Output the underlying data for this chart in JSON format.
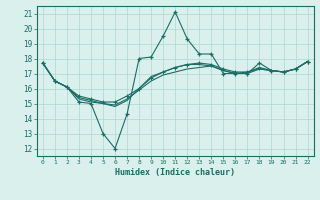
{
  "xlabel": "Humidex (Indice chaleur)",
  "background_color": "#daf0ec",
  "grid_color": "#aed8d0",
  "line_color": "#1a6e64",
  "xlim": [
    -0.5,
    22.5
  ],
  "ylim": [
    11.5,
    21.5
  ],
  "xticks": [
    0,
    1,
    2,
    3,
    4,
    5,
    6,
    7,
    8,
    9,
    10,
    11,
    12,
    13,
    14,
    15,
    16,
    17,
    18,
    19,
    20,
    21,
    22
  ],
  "yticks": [
    12,
    13,
    14,
    15,
    16,
    17,
    18,
    19,
    20,
    21
  ],
  "line1_x": [
    0,
    1,
    2,
    3,
    4,
    5,
    6,
    7,
    8,
    9,
    10,
    11,
    12,
    13,
    14,
    15,
    16,
    17,
    18,
    19,
    20,
    21,
    22
  ],
  "line1_y": [
    17.7,
    16.5,
    16.1,
    15.1,
    15.0,
    13.0,
    12.0,
    14.3,
    18.0,
    18.1,
    19.5,
    21.1,
    19.3,
    18.3,
    18.3,
    17.0,
    17.0,
    17.0,
    17.7,
    17.2,
    17.1,
    17.3,
    17.8
  ],
  "line2_x": [
    0,
    1,
    2,
    3,
    4,
    5,
    6,
    7,
    8,
    9,
    10,
    11,
    12,
    13,
    14,
    15,
    16,
    17,
    18,
    19,
    20,
    21,
    22
  ],
  "line2_y": [
    17.7,
    16.5,
    16.1,
    15.5,
    15.3,
    15.1,
    15.1,
    15.5,
    16.0,
    16.7,
    17.1,
    17.4,
    17.6,
    17.7,
    17.6,
    17.3,
    17.1,
    17.1,
    17.4,
    17.2,
    17.1,
    17.3,
    17.8
  ],
  "line3_x": [
    0,
    1,
    2,
    3,
    4,
    5,
    6,
    7,
    8,
    9,
    10,
    11,
    12,
    13,
    14,
    15,
    16,
    17,
    18,
    19,
    20,
    21,
    22
  ],
  "line3_y": [
    17.7,
    16.5,
    16.1,
    15.3,
    15.1,
    15.0,
    14.9,
    15.3,
    15.9,
    16.5,
    16.9,
    17.1,
    17.3,
    17.4,
    17.5,
    17.2,
    17.0,
    17.0,
    17.3,
    17.2,
    17.1,
    17.3,
    17.8
  ],
  "line4_x": [
    0,
    1,
    2,
    3,
    4,
    5,
    6,
    7,
    8,
    9,
    10,
    11,
    12,
    13,
    14,
    15,
    16,
    17,
    18,
    19,
    20,
    21,
    22
  ],
  "line4_y": [
    17.7,
    16.5,
    16.1,
    15.4,
    15.2,
    15.0,
    14.8,
    15.2,
    16.0,
    16.8,
    17.1,
    17.4,
    17.6,
    17.6,
    17.5,
    17.2,
    17.0,
    17.1,
    17.3,
    17.2,
    17.1,
    17.3,
    17.8
  ]
}
